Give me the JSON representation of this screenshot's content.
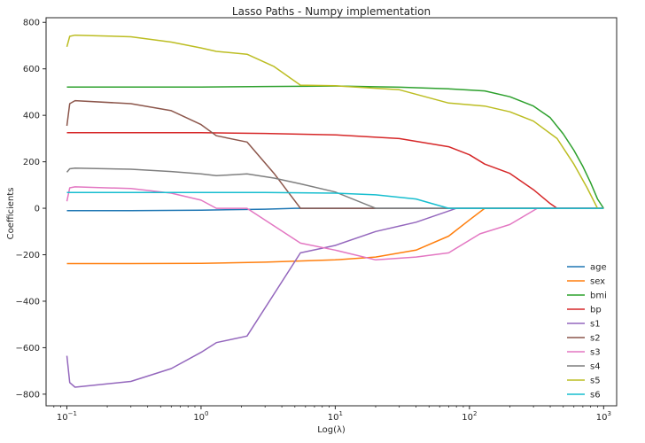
{
  "chart_data": {
    "type": "line",
    "title": "Lasso Paths - Numpy implementation",
    "xlabel": "Log(λ)",
    "ylabel": "Coefficients",
    "xscale": "log",
    "xlim": [
      0.07,
      1250
    ],
    "ylim": [
      -850,
      820
    ],
    "xticks": [
      {
        "value": 0.1,
        "base": "10",
        "exp": "−1"
      },
      {
        "value": 1,
        "base": "10",
        "exp": "0"
      },
      {
        "value": 10,
        "base": "10",
        "exp": "1"
      },
      {
        "value": 100,
        "base": "10",
        "exp": "2"
      },
      {
        "value": 1000,
        "base": "10",
        "exp": "3"
      }
    ],
    "yticks": [
      {
        "value": 800,
        "label": "800"
      },
      {
        "value": 600,
        "label": "600"
      },
      {
        "value": 400,
        "label": "400"
      },
      {
        "value": 200,
        "label": "200"
      },
      {
        "value": 0,
        "label": "0"
      },
      {
        "value": -200,
        "label": "−200"
      },
      {
        "value": -400,
        "label": "−400"
      },
      {
        "value": -600,
        "label": "−600"
      },
      {
        "value": -800,
        "label": "−800"
      }
    ],
    "legend_position": "lower-right",
    "series": [
      {
        "name": "age",
        "color": "#1f77b4",
        "x": [
          0.1,
          0.3,
          1,
          3,
          5,
          10,
          30,
          100,
          1000
        ],
        "values": [
          -10,
          -10,
          -8,
          -4,
          0,
          0,
          0,
          0,
          0
        ]
      },
      {
        "name": "sex",
        "color": "#ff7f0e",
        "x": [
          0.1,
          0.3,
          1,
          3,
          10,
          20,
          40,
          70,
          100,
          130,
          1000
        ],
        "values": [
          -238,
          -238,
          -237,
          -232,
          -222,
          -210,
          -180,
          -120,
          -50,
          0,
          0
        ]
      },
      {
        "name": "bmi",
        "color": "#2ca02c",
        "x": [
          0.1,
          1,
          3,
          10,
          30,
          70,
          130,
          200,
          300,
          400,
          500,
          600,
          700,
          800,
          900,
          1000
        ],
        "values": [
          522,
          522,
          524,
          526,
          521,
          514,
          505,
          480,
          440,
          390,
          320,
          250,
          180,
          110,
          40,
          0
        ]
      },
      {
        "name": "bp",
        "color": "#d62728",
        "x": [
          0.1,
          1,
          3,
          10,
          30,
          70,
          100,
          130,
          200,
          300,
          400,
          450,
          1000
        ],
        "values": [
          325,
          325,
          322,
          316,
          300,
          265,
          230,
          190,
          150,
          80,
          20,
          0,
          0
        ]
      },
      {
        "name": "s1",
        "color": "#9467bd",
        "x": [
          0.1,
          0.105,
          0.115,
          0.3,
          0.6,
          1,
          1.3,
          2.2,
          5.5,
          10,
          20,
          40,
          80,
          1000
        ],
        "values": [
          -635,
          -750,
          -770,
          -745,
          -690,
          -620,
          -578,
          -550,
          -192,
          -160,
          -100,
          -60,
          0,
          0
        ]
      },
      {
        "name": "s2",
        "color": "#8c564b",
        "x": [
          0.1,
          0.105,
          0.115,
          0.3,
          0.6,
          1,
          1.3,
          2.2,
          3.5,
          5.5,
          1000
        ],
        "values": [
          355,
          450,
          463,
          450,
          420,
          360,
          312,
          285,
          150,
          0,
          0
        ]
      },
      {
        "name": "s3",
        "color": "#e377c2",
        "x": [
          0.1,
          0.105,
          0.115,
          0.3,
          0.6,
          1,
          1.3,
          2.2,
          5.5,
          10,
          20,
          40,
          70,
          120,
          200,
          320,
          1000
        ],
        "values": [
          30,
          88,
          92,
          85,
          65,
          35,
          0,
          0,
          -150,
          -180,
          -222,
          -210,
          -192,
          -110,
          -70,
          0,
          0
        ]
      },
      {
        "name": "s4",
        "color": "#7f7f7f",
        "x": [
          0.1,
          0.105,
          0.115,
          0.3,
          0.6,
          1,
          1.3,
          2.2,
          3.5,
          5.5,
          10,
          20,
          1000
        ],
        "values": [
          155,
          170,
          173,
          168,
          158,
          148,
          140,
          148,
          130,
          105,
          70,
          0,
          0
        ]
      },
      {
        "name": "s5",
        "color": "#bcbd22",
        "x": [
          0.1,
          0.105,
          0.115,
          0.3,
          0.6,
          1,
          1.3,
          2.2,
          3.5,
          5.5,
          10,
          30,
          70,
          130,
          200,
          300,
          450,
          600,
          750,
          900,
          1000
        ],
        "values": [
          695,
          740,
          745,
          738,
          715,
          690,
          675,
          663,
          610,
          530,
          527,
          510,
          453,
          440,
          415,
          375,
          300,
          190,
          90,
          0,
          0
        ]
      },
      {
        "name": "s6",
        "color": "#17becf",
        "x": [
          0.1,
          1,
          3,
          10,
          20,
          40,
          70,
          1000
        ],
        "values": [
          68,
          68,
          68,
          65,
          58,
          40,
          0,
          0
        ]
      }
    ]
  }
}
